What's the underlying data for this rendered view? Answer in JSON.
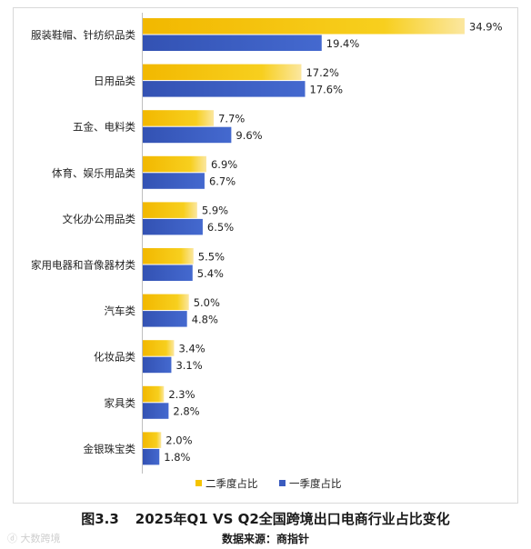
{
  "chart_data": {
    "type": "bar",
    "orientation": "horizontal",
    "categories": [
      "服装鞋帽、针纺织品类",
      "日用品类",
      "五金、电料类",
      "体育、娱乐用品类",
      "文化办公用品类",
      "家用电器和音像器材类",
      "汽车类",
      "化妆品类",
      "家具类",
      "金银珠宝类"
    ],
    "series": [
      {
        "name": "二季度占比",
        "color": "#f5c400",
        "values": [
          34.9,
          17.2,
          7.7,
          6.9,
          5.9,
          5.5,
          5.0,
          3.4,
          2.3,
          2.0
        ],
        "labels": [
          "34.9%",
          "17.2%",
          "7.7%",
          "6.9%",
          "5.9%",
          "5.5%",
          "5.0%",
          "3.4%",
          "2.3%",
          "2.0%"
        ]
      },
      {
        "name": "一季度占比",
        "color": "#3a5bbf",
        "values": [
          19.4,
          17.6,
          9.6,
          6.7,
          6.5,
          5.4,
          4.8,
          3.1,
          2.8,
          1.8
        ],
        "labels": [
          "19.4%",
          "17.6%",
          "9.6%",
          "6.7%",
          "6.5%",
          "5.4%",
          "4.8%",
          "3.1%",
          "2.8%",
          "1.8%"
        ]
      }
    ],
    "legend_position": "bottom",
    "grid": false
  },
  "caption": {
    "figure_no": "图3.3",
    "title": "2025年Q1 VS Q2全国跨境出口电商行业占比变化"
  },
  "source": "数据来源：商指针",
  "watermark": "大数跨境"
}
